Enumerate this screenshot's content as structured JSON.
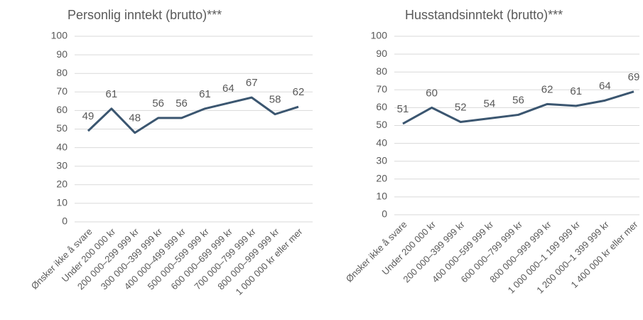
{
  "chart_data": [
    {
      "type": "line",
      "title": "Personlig inntekt (brutto)***",
      "categories": [
        "Ønsker ikke å svare",
        "Under 200 000 kr",
        "200 000–299 999 kr",
        "300 000–399 999 kr",
        "400 000–499 999 kr",
        "500 000–599 999 kr",
        "600 000–699 999 kr",
        "700 000–799 999 kr",
        "800 000–999 999 kr",
        "1 000 000 kr eller mer"
      ],
      "series": [
        {
          "name": "Personlig inntekt",
          "color": "#3b5670",
          "values": [
            49,
            61,
            48,
            56,
            56,
            61,
            64,
            67,
            58,
            62
          ]
        }
      ],
      "ylim": [
        0,
        100
      ],
      "yticks": [
        0,
        10,
        20,
        30,
        40,
        50,
        60,
        70,
        80,
        90,
        100
      ],
      "grid": true
    },
    {
      "type": "line",
      "title": "Husstandsinntekt (brutto)***",
      "categories": [
        "Ønsker ikke å svare",
        "Under 200 000 kr",
        "200 000–399 999 kr",
        "400 000–599 999 kr",
        "600 000–799 999 kr",
        "800 000–999 999 kr",
        "1 000 000–1 199 999 kr",
        "1 200 000–1 399 999 kr",
        "1 400 000 kr eller mer"
      ],
      "series": [
        {
          "name": "Husstandsinntekt",
          "color": "#3b5670",
          "values": [
            51,
            60,
            52,
            54,
            56,
            62,
            61,
            64,
            69
          ]
        }
      ],
      "ylim": [
        0,
        100
      ],
      "yticks": [
        0,
        10,
        20,
        30,
        40,
        50,
        60,
        70,
        80,
        90,
        100
      ],
      "grid": true
    }
  ]
}
